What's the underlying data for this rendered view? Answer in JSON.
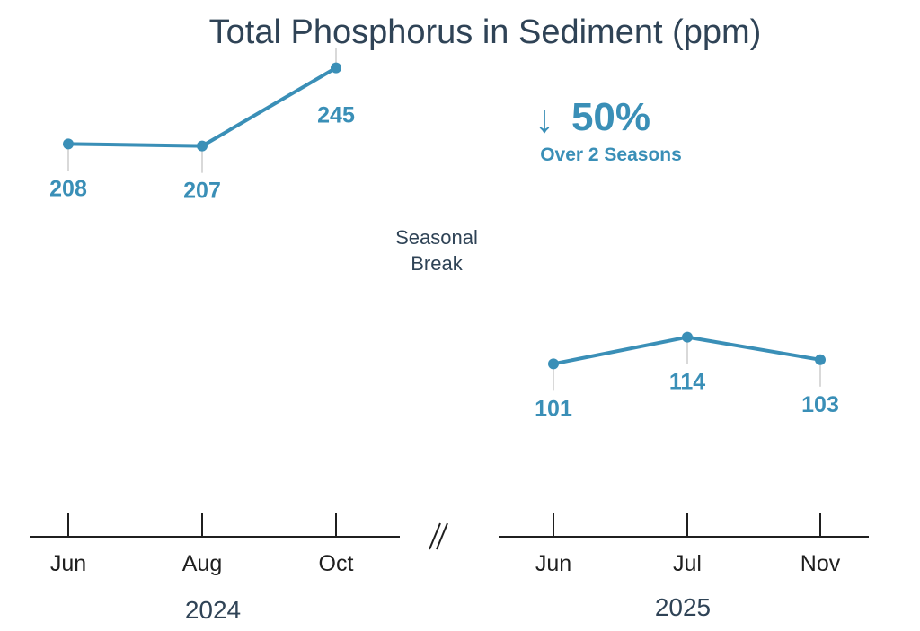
{
  "chart_data": {
    "type": "line",
    "title": "Total Phosphorus in Sediment (ppm)",
    "panels": [
      {
        "year": "2024",
        "categories": [
          "Jun",
          "Aug",
          "Oct"
        ],
        "values": [
          208,
          207,
          245
        ]
      },
      {
        "year": "2025",
        "categories": [
          "Jun",
          "Jul",
          "Nov"
        ],
        "values": [
          101,
          114,
          103
        ]
      }
    ],
    "callout": {
      "arrow": "↓",
      "value": "50%",
      "text": "Over 2 Seasons"
    },
    "break_note": [
      "Seasonal",
      "Break"
    ],
    "axis_break_symbol": "//",
    "colors": {
      "series": "#3a8fb7",
      "text": "#2f4356",
      "axis": "#1f1f1f",
      "guide": "#d9d9d9"
    }
  }
}
